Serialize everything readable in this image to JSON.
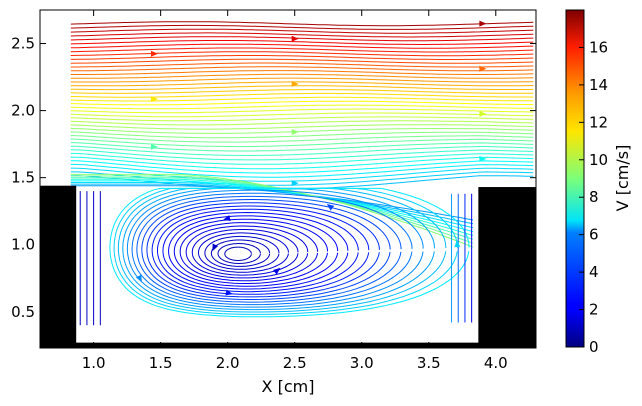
{
  "chart_data": {
    "type": "streamplot",
    "title": "",
    "xlabel": "X [cm]",
    "ylabel": "",
    "colorbar_label": "V [cm/s]",
    "colormap": "jet",
    "xlim": [
      0.6,
      4.3
    ],
    "ylim": [
      0.23,
      2.75
    ],
    "x_ticks": [
      1.0,
      1.5,
      2.0,
      2.5,
      3.0,
      3.5,
      4.0
    ],
    "x_tick_labels": [
      "1.0",
      "1.5",
      "2.0",
      "2.5",
      "3.0",
      "3.5",
      "4.0"
    ],
    "y_ticks": [
      0.5,
      1.0,
      1.5,
      2.0,
      2.5
    ],
    "y_tick_labels": [
      "0.5",
      "1.0",
      "1.5",
      "2.0",
      "2.5"
    ],
    "colorbar_range": [
      0,
      18
    ],
    "colorbar_ticks": [
      0,
      2,
      4,
      6,
      8,
      10,
      12,
      14,
      16
    ],
    "colorbar_tick_labels": [
      "0",
      "2",
      "4",
      "6",
      "8",
      "10",
      "12",
      "14",
      "16"
    ],
    "geometry": {
      "cavity_floor_y": 0.27,
      "left_wall": {
        "x": [
          0.6,
          0.87
        ],
        "y_top": 1.44
      },
      "right_wall": {
        "x": [
          3.87,
          4.3
        ],
        "y_top": 1.43
      },
      "floor_band_y": [
        0.23,
        0.27
      ]
    },
    "vortex_center": {
      "x": 2.07,
      "y": 0.93
    }
  }
}
